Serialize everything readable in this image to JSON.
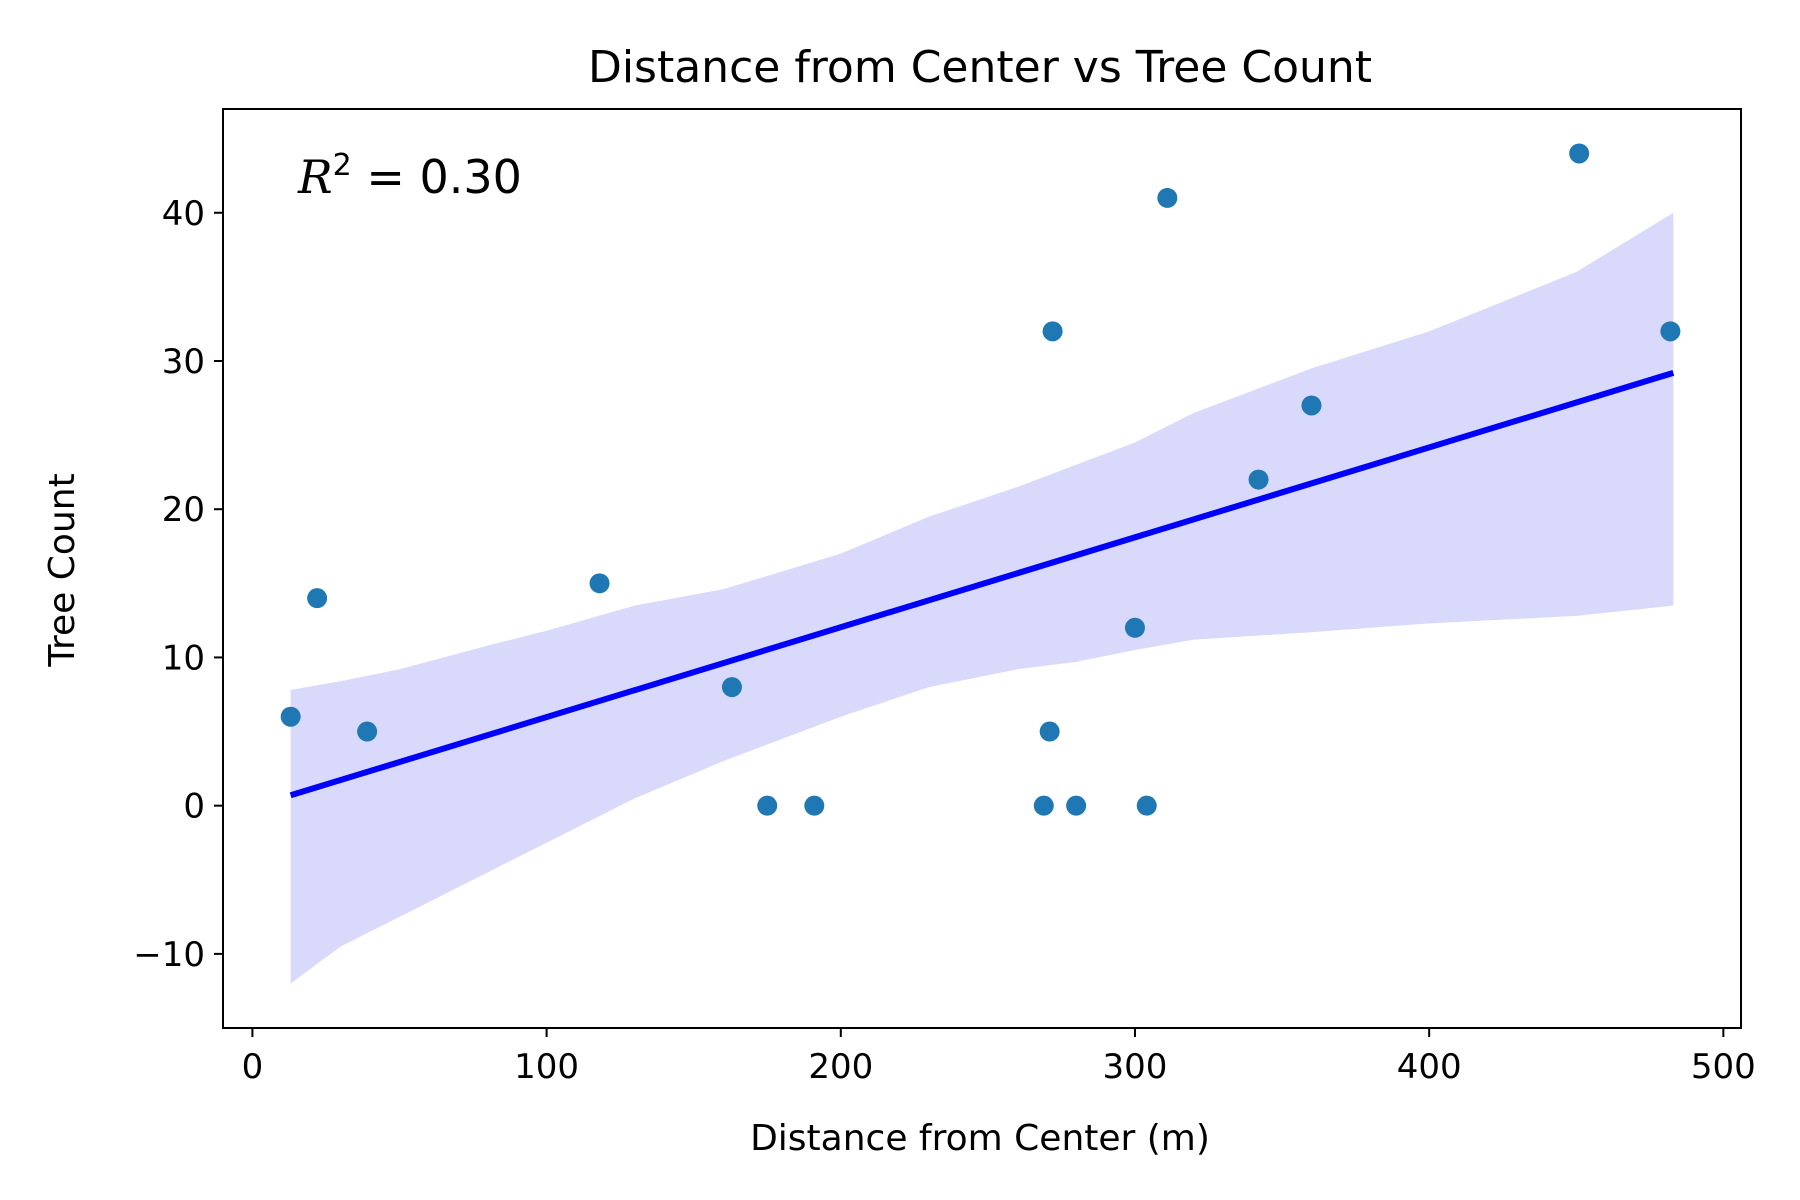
{
  "chart_data": {
    "type": "scatter",
    "title": "Distance from Center vs Tree Count",
    "xlabel": "Distance from Center (m)",
    "ylabel": "Tree Count",
    "xlim": [
      -10,
      506
    ],
    "ylim": [
      -15,
      47
    ],
    "xticks": [
      0,
      100,
      200,
      300,
      400,
      500
    ],
    "yticks": [
      -10,
      0,
      10,
      20,
      30,
      40
    ],
    "xtick_labels": [
      "0",
      "100",
      "200",
      "300",
      "400",
      "500"
    ],
    "ytick_labels": [
      "−10",
      "0",
      "10",
      "20",
      "30",
      "40"
    ],
    "grid": false,
    "annotation": {
      "symbol": "R",
      "exponent": "2",
      "text": " = 0.30"
    },
    "series": [
      {
        "type": "scatter",
        "color": "#1f77b4",
        "points": [
          {
            "x": 13,
            "y": 6
          },
          {
            "x": 22,
            "y": 14
          },
          {
            "x": 39,
            "y": 5
          },
          {
            "x": 118,
            "y": 15
          },
          {
            "x": 163,
            "y": 8
          },
          {
            "x": 175,
            "y": 0
          },
          {
            "x": 191,
            "y": 0
          },
          {
            "x": 269,
            "y": 0
          },
          {
            "x": 271,
            "y": 5
          },
          {
            "x": 272,
            "y": 32
          },
          {
            "x": 280,
            "y": 0
          },
          {
            "x": 300,
            "y": 12
          },
          {
            "x": 304,
            "y": 0
          },
          {
            "x": 311,
            "y": 41
          },
          {
            "x": 342,
            "y": 22
          },
          {
            "x": 360,
            "y": 27
          },
          {
            "x": 451,
            "y": 44
          },
          {
            "x": 482,
            "y": 32
          }
        ]
      },
      {
        "type": "regression-line",
        "color": "#0000ff",
        "points": [
          {
            "x": 13,
            "y": 0.7
          },
          {
            "x": 483,
            "y": 29.2
          }
        ]
      },
      {
        "type": "confidence-band",
        "color": "#d9d9fc",
        "x": [
          13,
          30,
          50,
          80,
          100,
          130,
          160,
          200,
          230,
          260,
          280,
          300,
          320,
          360,
          400,
          450,
          483
        ],
        "lower": [
          -12,
          -9.5,
          -7.5,
          -4.5,
          -2.5,
          0.5,
          3,
          6,
          8,
          9.2,
          9.7,
          10.5,
          11.2,
          11.7,
          12.3,
          12.8,
          13.5
        ],
        "upper": [
          7.8,
          8.4,
          9.2,
          10.8,
          11.8,
          13.5,
          14.6,
          17,
          19.5,
          21.5,
          23,
          24.5,
          26.5,
          29.5,
          32,
          36,
          40
        ]
      }
    ]
  }
}
